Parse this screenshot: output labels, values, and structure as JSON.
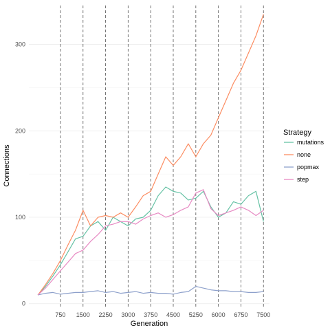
{
  "chart_data": {
    "type": "line",
    "title": "",
    "xlabel": "Generation",
    "ylabel": "Connections",
    "xlim": [
      -300,
      7700
    ],
    "ylim": [
      -5,
      345
    ],
    "xticks": [
      750,
      1500,
      2250,
      3000,
      3750,
      4500,
      5250,
      6000,
      6750,
      7500
    ],
    "xtick_labels": [
      "750",
      "1500",
      "2250",
      "3000",
      "3750",
      "4500",
      "5250",
      "6000",
      "6750",
      "7500"
    ],
    "yticks": [
      0,
      100,
      200,
      300
    ],
    "ytick_labels": [
      "0",
      "100",
      "200",
      "300"
    ],
    "vlines": [
      750,
      1500,
      2250,
      3000,
      3750,
      4500,
      5250,
      6000,
      6750,
      7500
    ],
    "vline_style": "dashed",
    "grid": true,
    "legend": {
      "title": "Strategy",
      "position": "right"
    },
    "series": [
      {
        "name": "mutations",
        "color": "#66c2a5",
        "x": [
          0,
          250,
          500,
          750,
          1000,
          1250,
          1500,
          1750,
          2000,
          2250,
          2500,
          2750,
          3000,
          3250,
          3500,
          3750,
          4000,
          4250,
          4500,
          4750,
          5000,
          5250,
          5500,
          5750,
          6000,
          6250,
          6500,
          6750,
          7000,
          7250,
          7500
        ],
        "values": [
          10,
          20,
          32,
          45,
          60,
          75,
          78,
          90,
          95,
          85,
          100,
          95,
          90,
          98,
          100,
          108,
          125,
          135,
          130,
          128,
          120,
          122,
          130,
          112,
          100,
          105,
          118,
          115,
          125,
          130,
          95
        ]
      },
      {
        "name": "none",
        "color": "#fc8d62",
        "x": [
          0,
          250,
          500,
          750,
          1000,
          1250,
          1500,
          1750,
          2000,
          2250,
          2500,
          2750,
          3000,
          3250,
          3500,
          3750,
          4000,
          4250,
          4500,
          4750,
          5000,
          5250,
          5500,
          5750,
          6000,
          6250,
          6500,
          6750,
          7000,
          7250,
          7500
        ],
        "values": [
          10,
          22,
          35,
          50,
          68,
          85,
          108,
          90,
          100,
          102,
          100,
          105,
          100,
          112,
          125,
          130,
          150,
          170,
          160,
          170,
          185,
          170,
          185,
          195,
          215,
          235,
          255,
          270,
          290,
          310,
          335
        ]
      },
      {
        "name": "popmax",
        "color": "#8da0cb",
        "x": [
          0,
          250,
          500,
          750,
          1000,
          1250,
          1500,
          1750,
          2000,
          2250,
          2500,
          2750,
          3000,
          3250,
          3500,
          3750,
          4000,
          4250,
          4500,
          4750,
          5000,
          5250,
          5500,
          5750,
          6000,
          6250,
          6500,
          6750,
          7000,
          7250,
          7500
        ],
        "values": [
          10,
          12,
          13,
          11,
          12,
          13,
          13,
          14,
          15,
          13,
          14,
          12,
          13,
          14,
          12,
          13,
          12,
          12,
          11,
          13,
          14,
          20,
          18,
          16,
          15,
          15,
          14,
          14,
          13,
          13,
          14
        ]
      },
      {
        "name": "step",
        "color": "#e78ac3",
        "x": [
          0,
          250,
          500,
          750,
          1000,
          1250,
          1500,
          1750,
          2000,
          2250,
          2500,
          2750,
          3000,
          3250,
          3500,
          3750,
          4000,
          4250,
          4500,
          4750,
          5000,
          5250,
          5500,
          5750,
          6000,
          6250,
          6500,
          6750,
          7000,
          7250,
          7500
        ],
        "values": [
          10,
          18,
          28,
          38,
          48,
          58,
          62,
          72,
          80,
          90,
          92,
          95,
          95,
          92,
          98,
          102,
          105,
          100,
          103,
          108,
          112,
          128,
          132,
          110,
          102,
          105,
          108,
          112,
          108,
          102,
          108
        ]
      }
    ]
  }
}
